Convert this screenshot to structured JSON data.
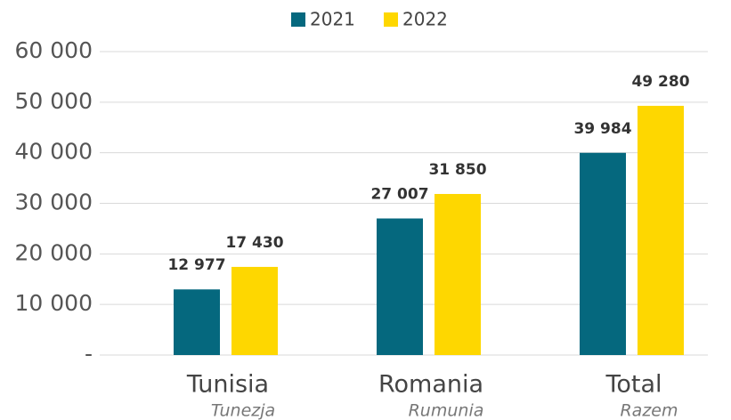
{
  "chart_data": {
    "type": "bar",
    "categories": [
      "Tunisia",
      "Romania",
      "Total"
    ],
    "category_sublabels": [
      "Tunezja",
      "Rumunia",
      "Razem"
    ],
    "series": [
      {
        "name": "2021",
        "color": "#05687e",
        "values": [
          12977,
          27007,
          39984
        ],
        "value_labels": [
          "12 977",
          "27 007",
          "39 984"
        ]
      },
      {
        "name": "2022",
        "color": "#fed700",
        "values": [
          17430,
          31850,
          49280
        ],
        "value_labels": [
          "17 430",
          "31 850",
          "49 280"
        ]
      }
    ],
    "ylim": [
      0,
      60000
    ],
    "yticks": [
      {
        "value": 0,
        "label": "-"
      },
      {
        "value": 10000,
        "label": "10 000"
      },
      {
        "value": 20000,
        "label": "20 000"
      },
      {
        "value": 30000,
        "label": "30 000"
      },
      {
        "value": 40000,
        "label": "40 000"
      },
      {
        "value": 50000,
        "label": "50 000"
      },
      {
        "value": 60000,
        "label": "60 000"
      }
    ],
    "grid": true,
    "legend": "top"
  }
}
